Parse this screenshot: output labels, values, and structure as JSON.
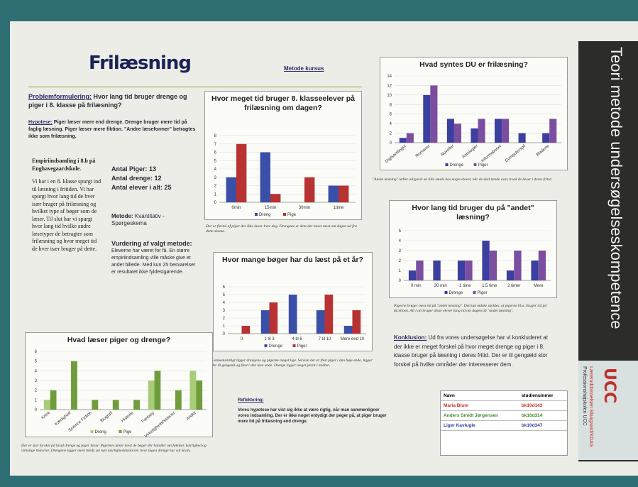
{
  "poster": {
    "title": "Frilæsning",
    "course": "Metode kursus",
    "problem": {
      "label": "Problemformulering:",
      "text": " Hvor lang tid bruger drenge og piger i 8. klasse på frilæsning?"
    },
    "hypothesis": {
      "label": "Hypotese:",
      "text": " Piger læser mere end drenge. Drenge bruger mere tid på faglig læsning. Piger læser mere fiktion. \"Andre læseformer\" betragtes ikke som frilæsning."
    },
    "empiri": {
      "heading": "Empiriindsamling i 8.b på Enghavegaardskole.",
      "text": "Vi har i en 8. klasse spurgt ind til læsning i fritiden. Vi har spurgt hvor lang tid de hver især bruger på frilæsning og hvilket type af bøger som de læser. Til slut har vi spurgt hvor lang tid hvilke andre læsetyper de betragter som frilæsning og hvor meget tid de hver især bruger på dette."
    },
    "counts": [
      "Antal Piger: 13",
      "Antal drenge: 12",
      "Antal elever i alt: 25"
    ],
    "method": {
      "label": "Metode:",
      "text": " Kvantitativ - Spørgeskema"
    },
    "evaluation": {
      "label": "Vurdering af valgt metode:",
      "text": "Eleverne har været for få. En større empiriindsamling ville måske give et andet billede. Med kun 25 besvarelser er resultatet ikke fyldestgørende."
    },
    "captions": [
      "Der er flertal af piger der ikke læser hver dag. Drengene er dem der læser mest om dagen ud fra dette skema.",
      "\"Andet læsning\" tæller alligevel en lille smule hos nogle elever, når de skal tænke over, hvad de læser i deres fritid.",
      "Pigerne bruger mest tid på \"andet læsning\". Det kan måske skyldes, at pigerne bl.a. bruger tid på facebook. Alt i alt bruger disse elever lang tid om dagen på \"andet læsning\".",
      "Gennemsnitligt ligger drengene og pigerne meget lige. Selvom der er flest piger i den høje ende, ligger der til gengæld og flest i den lave ende. Drenge ligger meget jævnt i midten.",
      "Der er stor forskel på hvad drenge og piger læser. Pigernes læser mest de bøger der handler om følelser, kærlighed og virkelige historier. Drengene ligger mere bredt, på nær kærlighedshistorier, hvor ingen drenge har sat kryds."
    ],
    "conclusion": {
      "label": "Konklusion:",
      "text": " Ud fra vores undersøgelse har vi konkluderet at der ikke er meget forskel på hvor meget drenge og piger i 8. klasse bruger på læsning i deres fritid. Der er til gengæld stor forskel på hvilke områder der interesserer dem."
    },
    "reflection": {
      "label": "Reflektering:",
      "text": "Vores hypotese har vist sig ikke at være rigtig, når man sammenligner vores indsamling. Der er ikke noget entydigt der peger på, at piger bruger mere tid på frilæsning end drenge."
    },
    "table": {
      "header": [
        "Navn",
        "studienummer"
      ],
      "rows": [
        [
          "Maria Blum",
          "bk10d143"
        ],
        [
          "Anders Smidt Jørgensen",
          "bk10d314"
        ],
        [
          "Liger Kavlugle",
          "bk10d347"
        ]
      ]
    },
    "banner": "Teori metode undersøgelseskompetence",
    "logo": {
      "mark": "UCC",
      "line1": "Læreruddannelsen Blaagaard/KDAS",
      "line2": "Professionshøjskolen UCC"
    }
  },
  "chart_data": [
    {
      "type": "bar",
      "title": "Hvor meget tid bruger 8. klasseelever på frilæsning om dagen?",
      "categories": [
        "0min",
        "15min",
        "30min",
        "1time"
      ],
      "series": [
        {
          "name": "Dreng",
          "color": "#3a4fa8",
          "values": [
            3,
            6,
            0,
            2
          ]
        },
        {
          "name": "Pige",
          "color": "#b83232",
          "values": [
            7,
            1,
            3,
            2
          ]
        }
      ],
      "ylim": [
        0,
        8
      ],
      "yticks": [
        0,
        1,
        2,
        3,
        4,
        5,
        6,
        7,
        8
      ],
      "legend": "bottom"
    },
    {
      "type": "bar",
      "title": "Hvad syntes DU er frilæsning?",
      "categories": [
        "Digtsamlinger",
        "Romaner",
        "Noveller",
        "Antologier",
        "Informationer",
        "Computerspil",
        "Bladene"
      ],
      "series": [
        {
          "name": "Drenge",
          "color": "#3b3fa0",
          "values": [
            1,
            10,
            5,
            3,
            5,
            2,
            2
          ]
        },
        {
          "name": "Piger",
          "color": "#7b4ea0",
          "values": [
            2,
            12,
            4,
            5,
            5,
            0,
            5
          ]
        }
      ],
      "ylim": [
        0,
        14
      ],
      "yticks": [
        0,
        2,
        4,
        6,
        8,
        10,
        12,
        14
      ],
      "legend": "bottom"
    },
    {
      "type": "bar",
      "title": "Hvor lang tid bruger du på \"andet\" læsning?",
      "categories": [
        "0 min",
        "30 min",
        "1 time",
        "1,5 time",
        "2 timer",
        "Mere"
      ],
      "series": [
        {
          "name": "Drenge",
          "color": "#3b3fa0",
          "values": [
            1,
            2,
            2,
            4,
            1,
            2
          ]
        },
        {
          "name": "Piger",
          "color": "#7b4ea0",
          "values": [
            2,
            0,
            2,
            3,
            3,
            3
          ]
        }
      ],
      "ylim": [
        0,
        5
      ],
      "yticks": [
        0,
        1,
        2,
        3,
        4,
        5
      ],
      "legend": "bottom"
    },
    {
      "type": "bar",
      "title": "Hvor mange bøger har du læst på et år?",
      "categories": [
        "0",
        "1 til 3",
        "4 til 6",
        "7 til 10",
        "Mere end 10"
      ],
      "series": [
        {
          "name": "Drenge",
          "color": "#3a4fa8",
          "values": [
            0,
            3,
            5,
            3,
            1
          ]
        },
        {
          "name": "Piger",
          "color": "#b83232",
          "values": [
            1,
            4,
            0,
            5,
            3
          ]
        }
      ],
      "ylim": [
        0,
        6
      ],
      "yticks": [
        0,
        1,
        2,
        3,
        4,
        5,
        6
      ],
      "legend": "bottom"
    },
    {
      "type": "bar",
      "title": "Hvad læser piger og drenge?",
      "categories": [
        "Krimi",
        "Kærlighed",
        "Science Fiction",
        "Biografi",
        "Historie",
        "Fantasy",
        "Virkelighedshistorier",
        "Andet"
      ],
      "series": [
        {
          "name": "Dreng",
          "color": "#a8cc78",
          "values": [
            1,
            0,
            0,
            0,
            0,
            3,
            0,
            4
          ]
        },
        {
          "name": "Pige",
          "color": "#6f9d3c",
          "values": [
            2,
            5,
            1,
            1,
            1,
            4,
            2,
            3
          ]
        }
      ],
      "ylim": [
        0,
        6
      ],
      "yticks": [
        0,
        1,
        2,
        3,
        4,
        5,
        6
      ],
      "legend": "bottom"
    }
  ]
}
